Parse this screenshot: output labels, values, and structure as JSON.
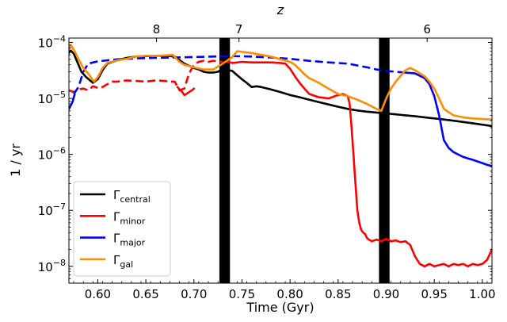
{
  "chart_data": {
    "type": "line",
    "xlabel": "Time (Gyr)",
    "ylabel": "1 / yr",
    "top_axis_label": "z",
    "xlim": [
      0.57,
      1.01
    ],
    "ylim": [
      5e-09,
      0.00012
    ],
    "yscale": "log",
    "x_ticks": [
      0.6,
      0.65,
      0.7,
      0.75,
      0.8,
      0.85,
      0.9,
      0.95,
      1.0
    ],
    "x_tick_labels": [
      "0.60",
      "0.65",
      "0.70",
      "0.75",
      "0.80",
      "0.85",
      "0.90",
      "0.95",
      "1.00"
    ],
    "y_ticks": [
      1e-08,
      1e-07,
      1e-06,
      1e-05,
      0.0001
    ],
    "y_tick_labels": [
      {
        "base": "10",
        "exp": "−8"
      },
      {
        "base": "10",
        "exp": "−7"
      },
      {
        "base": "10",
        "exp": "−6"
      },
      {
        "base": "10",
        "exp": "−5"
      },
      {
        "base": "10",
        "exp": "−4"
      }
    ],
    "top_ticks": [
      {
        "label": "8",
        "x": 0.6611
      },
      {
        "label": "7",
        "x": 0.7469
      },
      {
        "label": "6",
        "x": 0.9426
      }
    ],
    "shaded_bands": [
      {
        "x0": 0.7265,
        "x1": 0.7375,
        "color": "#000000"
      },
      {
        "x0": 0.8925,
        "x1": 0.9035,
        "color": "#000000"
      }
    ],
    "legend": {
      "position": "lower-left",
      "entries": [
        {
          "symbol": "Γ",
          "sub": "central",
          "color": "#000000"
        },
        {
          "symbol": "Γ",
          "sub": "minor",
          "color": "#ff0000"
        },
        {
          "symbol": "Γ",
          "sub": "major",
          "color": "#0000ff"
        },
        {
          "symbol": "Γ",
          "sub": "gal",
          "color": "#ff8c00"
        }
      ]
    },
    "series": [
      {
        "key": "central",
        "color": "#000000",
        "style": "solid",
        "x": [
          0.57,
          0.572,
          0.575,
          0.58,
          0.583,
          0.588,
          0.595,
          0.6,
          0.605,
          0.61,
          0.62,
          0.63,
          0.64,
          0.65,
          0.66,
          0.67,
          0.68,
          0.69,
          0.7,
          0.705,
          0.71,
          0.715,
          0.72,
          0.725,
          0.73,
          0.74,
          0.745,
          0.75,
          0.755,
          0.76,
          0.765,
          0.77,
          0.78,
          0.79,
          0.8,
          0.81,
          0.82,
          0.83,
          0.84,
          0.85,
          0.86,
          0.87,
          0.88,
          0.89,
          0.9,
          0.91,
          0.92,
          0.93,
          0.94,
          0.95,
          0.96,
          0.97,
          0.98,
          0.99,
          1.0,
          1.01
        ],
        "y": [
          6.5e-05,
          7.2e-05,
          6.3e-05,
          4e-05,
          3e-05,
          2.4e-05,
          1.9e-05,
          2.2e-05,
          3.2e-05,
          4.2e-05,
          4.8e-05,
          5.3e-05,
          5.6e-05,
          5.7e-05,
          5.8e-05,
          5.8e-05,
          5.6e-05,
          4.2e-05,
          3.5e-05,
          3.3e-05,
          3e-05,
          2.9e-05,
          2.9e-05,
          3e-05,
          3.4e-05,
          3.1e-05,
          2.6e-05,
          2.2e-05,
          1.9e-05,
          1.6e-05,
          1.65e-05,
          1.6e-05,
          1.45e-05,
          1.3e-05,
          1.15e-05,
          1.05e-05,
          9.5e-06,
          8.6e-06,
          7.8e-06,
          7.1e-06,
          6.5e-06,
          6.1e-06,
          5.8e-06,
          5.6e-06,
          5.4e-06,
          5.2e-06,
          5e-06,
          4.8e-06,
          4.6e-06,
          4.4e-06,
          4.2e-06,
          4e-06,
          3.8e-06,
          3.6e-06,
          3.4e-06,
          3.2e-06
        ]
      },
      {
        "key": "minor_dashed",
        "color": "#ff0000",
        "style": "dashed",
        "x": [
          0.57,
          0.575,
          0.58,
          0.585,
          0.59,
          0.595,
          0.6,
          0.605,
          0.61,
          0.615,
          0.62,
          0.63,
          0.64,
          0.65,
          0.66,
          0.67,
          0.675,
          0.68,
          0.685,
          0.69,
          0.695,
          0.7,
          0.705,
          0.71,
          0.715,
          0.72,
          0.725,
          0.73
        ],
        "y": [
          1.4e-05,
          1.3e-05,
          1.45e-05,
          1.5e-05,
          1.4e-05,
          1.65e-05,
          1.55e-05,
          1.6e-05,
          1.8e-05,
          2e-05,
          2e-05,
          2.1e-05,
          2.05e-05,
          2e-05,
          2.1e-05,
          2.05e-05,
          2e-05,
          2e-05,
          1.4e-05,
          1.5e-05,
          2.8e-05,
          4e-05,
          4.5e-05,
          4.7e-05,
          4.5e-05,
          4.7e-05,
          4.6e-05,
          4.5e-05
        ]
      },
      {
        "key": "minor_solid_a",
        "color": "#ff0000",
        "style": "solid",
        "x": [
          0.683,
          0.686,
          0.688,
          0.69,
          0.692,
          0.695,
          0.698,
          0.7
        ],
        "y": [
          1.6e-05,
          1.4e-05,
          1.3e-05,
          1.15e-05,
          1.2e-05,
          1.3e-05,
          1.4e-05,
          1.5e-05
        ]
      },
      {
        "key": "minor_solid_b",
        "color": "#ff0000",
        "style": "solid",
        "x": [
          0.735,
          0.74,
          0.75,
          0.76,
          0.77,
          0.78,
          0.79,
          0.795,
          0.8,
          0.805,
          0.81,
          0.815,
          0.82,
          0.83,
          0.84,
          0.85,
          0.855,
          0.86,
          0.862,
          0.864,
          0.866,
          0.868,
          0.87,
          0.872,
          0.874,
          0.876,
          0.878,
          0.88,
          0.882,
          0.885,
          0.89,
          0.895,
          0.9,
          0.905,
          0.91,
          0.915,
          0.92,
          0.925,
          0.93,
          0.935,
          0.94,
          0.945,
          0.95,
          0.955,
          0.96,
          0.965,
          0.97,
          0.975,
          0.98,
          0.985,
          0.99,
          0.995,
          1.0,
          1.005,
          1.01
        ],
        "y": [
          4.5e-05,
          4.3e-05,
          4.5e-05,
          4.4e-05,
          4.4e-05,
          4.4e-05,
          4.3e-05,
          4.2e-05,
          3.4e-05,
          2.5e-05,
          1.9e-05,
          1.5e-05,
          1.2e-05,
          1.05e-05,
          1e-05,
          1.15e-05,
          1.2e-05,
          1.1e-05,
          8e-06,
          3e-06,
          1e-06,
          3e-07,
          1e-07,
          6e-08,
          4.5e-08,
          4e-08,
          3.8e-08,
          3.2e-08,
          3e-08,
          2.8e-08,
          3e-08,
          2.8e-08,
          3.1e-08,
          2.8e-08,
          2.9e-08,
          2.7e-08,
          2.8e-08,
          2.4e-08,
          1.5e-08,
          1.1e-08,
          1e-08,
          1.1e-08,
          1e-08,
          1.05e-08,
          1.1e-08,
          1e-08,
          1.1e-08,
          1.05e-08,
          1.1e-08,
          1e-08,
          1.1e-08,
          1.05e-08,
          1.1e-08,
          1.3e-08,
          2e-08
        ]
      },
      {
        "key": "major_dashed",
        "color": "#0000ff",
        "style": "dashed",
        "x": [
          0.575,
          0.58,
          0.585,
          0.59,
          0.6,
          0.62,
          0.64,
          0.66,
          0.68,
          0.7,
          0.72,
          0.74,
          0.76,
          0.78,
          0.8,
          0.82,
          0.84,
          0.86,
          0.88,
          0.89,
          0.9,
          0.91,
          0.92
        ],
        "y": [
          1.2e-05,
          1.6e-05,
          3e-05,
          4.2e-05,
          4.6e-05,
          5e-05,
          5.2e-05,
          5.3e-05,
          5.4e-05,
          5.5e-05,
          5.6e-05,
          5.7e-05,
          5.6e-05,
          5.4e-05,
          5.1e-05,
          4.7e-05,
          4.4e-05,
          4.2e-05,
          3.6e-05,
          3.3e-05,
          3.1e-05,
          3e-05,
          2.9e-05
        ]
      },
      {
        "key": "major_solid_a",
        "color": "#0000ff",
        "style": "solid",
        "x": [
          0.57,
          0.572,
          0.574,
          0.576
        ],
        "y": [
          6.5e-06,
          7.5e-06,
          9e-06,
          1.2e-05
        ]
      },
      {
        "key": "major_solid_b",
        "color": "#0000ff",
        "style": "solid",
        "x": [
          0.92,
          0.93,
          0.94,
          0.945,
          0.95,
          0.955,
          0.96,
          0.965,
          0.97,
          0.98,
          0.99,
          1.0,
          1.005,
          1.01
        ],
        "y": [
          2.9e-05,
          2.8e-05,
          2.3e-05,
          1.8e-05,
          1.1e-05,
          5e-06,
          1.8e-06,
          1.3e-06,
          1.1e-06,
          9e-07,
          8e-07,
          7e-07,
          6.5e-07,
          6.2e-07
        ]
      },
      {
        "key": "gal",
        "color": "#ff8c00",
        "style": "solid",
        "x": [
          0.57,
          0.572,
          0.576,
          0.58,
          0.585,
          0.59,
          0.596,
          0.6,
          0.605,
          0.61,
          0.62,
          0.63,
          0.64,
          0.65,
          0.66,
          0.67,
          0.678,
          0.685,
          0.69,
          0.7,
          0.71,
          0.72,
          0.73,
          0.74,
          0.745,
          0.75,
          0.76,
          0.77,
          0.78,
          0.79,
          0.8,
          0.805,
          0.81,
          0.815,
          0.82,
          0.83,
          0.84,
          0.85,
          0.86,
          0.87,
          0.88,
          0.89,
          0.895,
          0.9,
          0.905,
          0.91,
          0.92,
          0.925,
          0.93,
          0.935,
          0.94,
          0.945,
          0.95,
          0.955,
          0.96,
          0.97,
          0.98,
          0.99,
          1.0,
          1.01
        ],
        "y": [
          7.5e-05,
          9e-05,
          7e-05,
          5e-05,
          3.5e-05,
          2.8e-05,
          2e-05,
          2.4e-05,
          3.5e-05,
          4.3e-05,
          4.8e-05,
          5.1e-05,
          5.6e-05,
          5.8e-05,
          5.8e-05,
          5.9e-05,
          6e-05,
          4.5e-05,
          4e-05,
          3.6e-05,
          3.3e-05,
          3.3e-05,
          4.2e-05,
          5.5e-05,
          7e-05,
          6.8e-05,
          6.5e-05,
          6e-05,
          5.6e-05,
          5e-05,
          4.5e-05,
          4e-05,
          3.3e-05,
          2.7e-05,
          2.3e-05,
          1.9e-05,
          1.5e-05,
          1.2e-05,
          1.1e-05,
          9.5e-06,
          8e-06,
          6.5e-06,
          6e-06,
          1e-05,
          1.5e-05,
          2e-05,
          3.2e-05,
          3.5e-05,
          3.2e-05,
          2.8e-05,
          2.5e-05,
          2e-05,
          1.5e-05,
          1e-05,
          6.5e-06,
          5e-06,
          4.6e-06,
          4.4e-06,
          4.3e-06,
          4.2e-06
        ]
      }
    ]
  }
}
